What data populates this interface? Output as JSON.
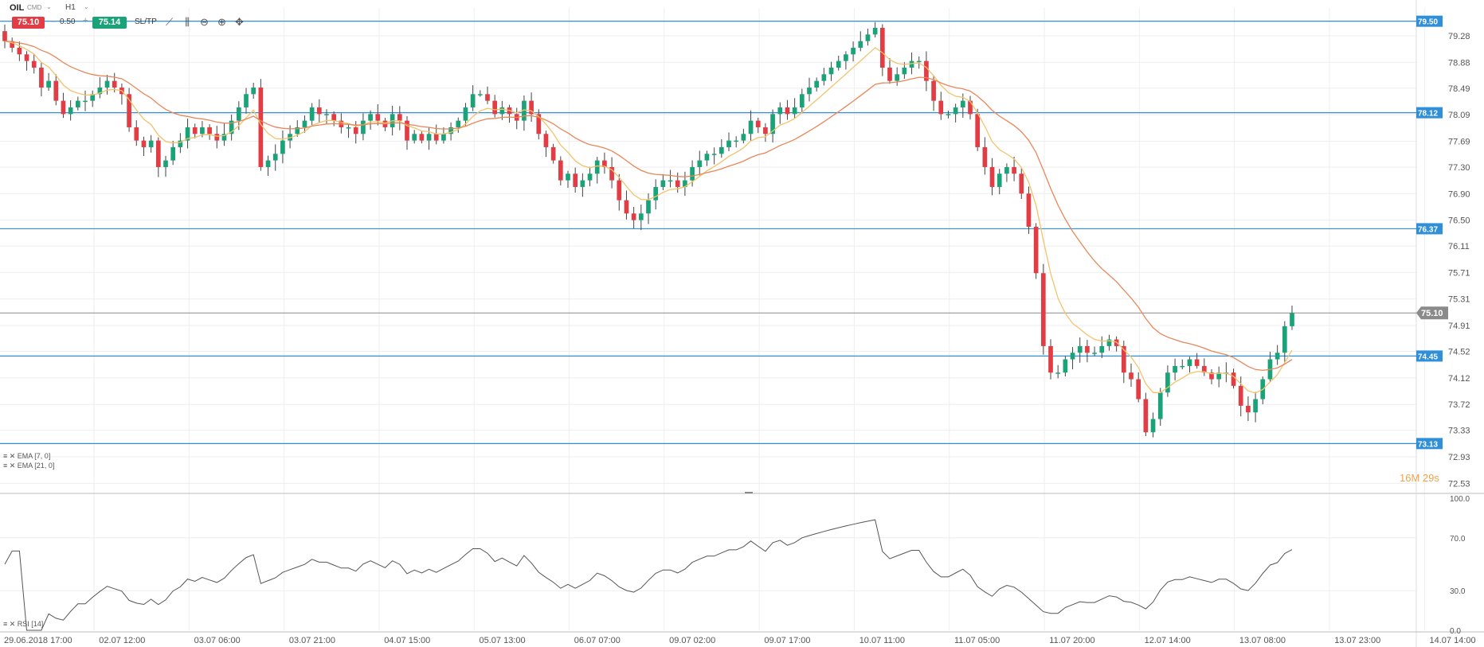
{
  "toolbar": {
    "symbol": "OIL",
    "symbol_sub": "CMD",
    "timeframe": "H1",
    "sell_price": "75.10",
    "spread": "0.50",
    "buy_price": "75.14",
    "sltp_label": "SL/TP",
    "icons": [
      "line-chart-icon",
      "candlestick-icon",
      "zoom-out-icon",
      "zoom-in-icon",
      "crosshair-icon"
    ]
  },
  "indicators": {
    "ema7_label": "EMA [7, 0]",
    "ema21_label": "EMA [21, 0]",
    "rsi_label": "RSI [14]"
  },
  "timer": "16M 29s",
  "colors": {
    "up": "#1aa378",
    "down": "#e23d45",
    "ema7": "#f2c36b",
    "ema21": "#e8875a",
    "hline": "#2f8fd8",
    "current": "#8a8a8a",
    "rsi": "#555555"
  },
  "chart_data": {
    "type": "candlestick",
    "symbol": "OIL",
    "timeframe": "H1",
    "y_ticks": [
      "79.28",
      "78.88",
      "78.49",
      "78.09",
      "77.69",
      "77.30",
      "76.90",
      "76.50",
      "76.11",
      "75.71",
      "75.31",
      "74.91",
      "74.52",
      "74.12",
      "73.72",
      "73.33",
      "72.93",
      "72.53"
    ],
    "ylim": [
      72.45,
      79.7
    ],
    "x_ticks": [
      "29.06.2018 17:00",
      "02.07 12:00",
      "03.07 06:00",
      "03.07 21:00",
      "04.07 15:00",
      "05.07 13:00",
      "06.07 07:00",
      "09.07 02:00",
      "09.07 17:00",
      "10.07 11:00",
      "11.07 05:00",
      "11.07 20:00",
      "12.07 14:00",
      "13.07 08:00",
      "13.07 23:00",
      "14.07 14:00"
    ],
    "horizontal_lines": [
      {
        "value": 79.5,
        "label": "79.50"
      },
      {
        "value": 78.12,
        "label": "78.12"
      },
      {
        "value": 76.37,
        "label": "76.37"
      },
      {
        "value": 74.45,
        "label": "74.45"
      },
      {
        "value": 73.13,
        "label": "73.13"
      }
    ],
    "current_price": {
      "value": 75.1,
      "label": "75.10"
    },
    "closes": [
      79.2,
      79.1,
      79.0,
      78.9,
      78.8,
      78.5,
      78.6,
      78.3,
      78.1,
      78.2,
      78.3,
      78.3,
      78.4,
      78.5,
      78.6,
      78.5,
      78.4,
      77.9,
      77.7,
      77.6,
      77.7,
      77.3,
      77.4,
      77.6,
      77.7,
      77.9,
      77.8,
      77.9,
      77.8,
      77.7,
      77.8,
      78.0,
      78.2,
      78.4,
      78.5,
      77.3,
      77.4,
      77.5,
      77.7,
      77.8,
      77.9,
      78.0,
      78.2,
      78.1,
      78.1,
      78.0,
      77.9,
      77.9,
      77.8,
      78.0,
      78.1,
      78.0,
      77.9,
      78.1,
      78.0,
      77.7,
      77.8,
      77.7,
      77.8,
      77.7,
      77.8,
      77.9,
      78.0,
      78.2,
      78.4,
      78.4,
      78.3,
      78.1,
      78.2,
      78.1,
      78.0,
      78.3,
      78.1,
      77.8,
      77.6,
      77.4,
      77.1,
      77.2,
      77.0,
      77.1,
      77.2,
      77.4,
      77.3,
      77.1,
      76.8,
      76.6,
      76.5,
      76.6,
      76.8,
      77.0,
      77.1,
      77.1,
      77.0,
      77.1,
      77.3,
      77.4,
      77.5,
      77.5,
      77.6,
      77.7,
      77.7,
      77.8,
      78.0,
      77.9,
      77.8,
      78.1,
      78.2,
      78.1,
      78.2,
      78.4,
      78.5,
      78.6,
      78.7,
      78.8,
      78.9,
      79.0,
      79.1,
      79.2,
      79.3,
      79.4,
      78.8,
      78.6,
      78.7,
      78.8,
      78.9,
      78.9,
      78.6,
      78.3,
      78.1,
      78.1,
      78.2,
      78.3,
      78.1,
      77.6,
      77.3,
      77.0,
      77.2,
      77.3,
      77.2,
      76.9,
      76.4,
      75.7,
      74.6,
      74.2,
      74.2,
      74.4,
      74.5,
      74.6,
      74.5,
      74.5,
      74.6,
      74.7,
      74.6,
      74.2,
      74.1,
      73.8,
      73.3,
      73.5,
      73.9,
      74.2,
      74.3,
      74.3,
      74.4,
      74.3,
      74.2,
      74.1,
      74.2,
      74.2,
      74.0,
      73.7,
      73.6,
      73.8,
      74.1,
      74.4,
      74.5,
      74.9,
      75.1
    ],
    "ema_7": {
      "last": 74.8
    },
    "ema_21": {
      "last": 74.4
    },
    "rsi": {
      "range": [
        0,
        100
      ],
      "ticks": [
        "100.0",
        "70.0",
        "30.0",
        "0.0"
      ],
      "last": 63
    }
  }
}
